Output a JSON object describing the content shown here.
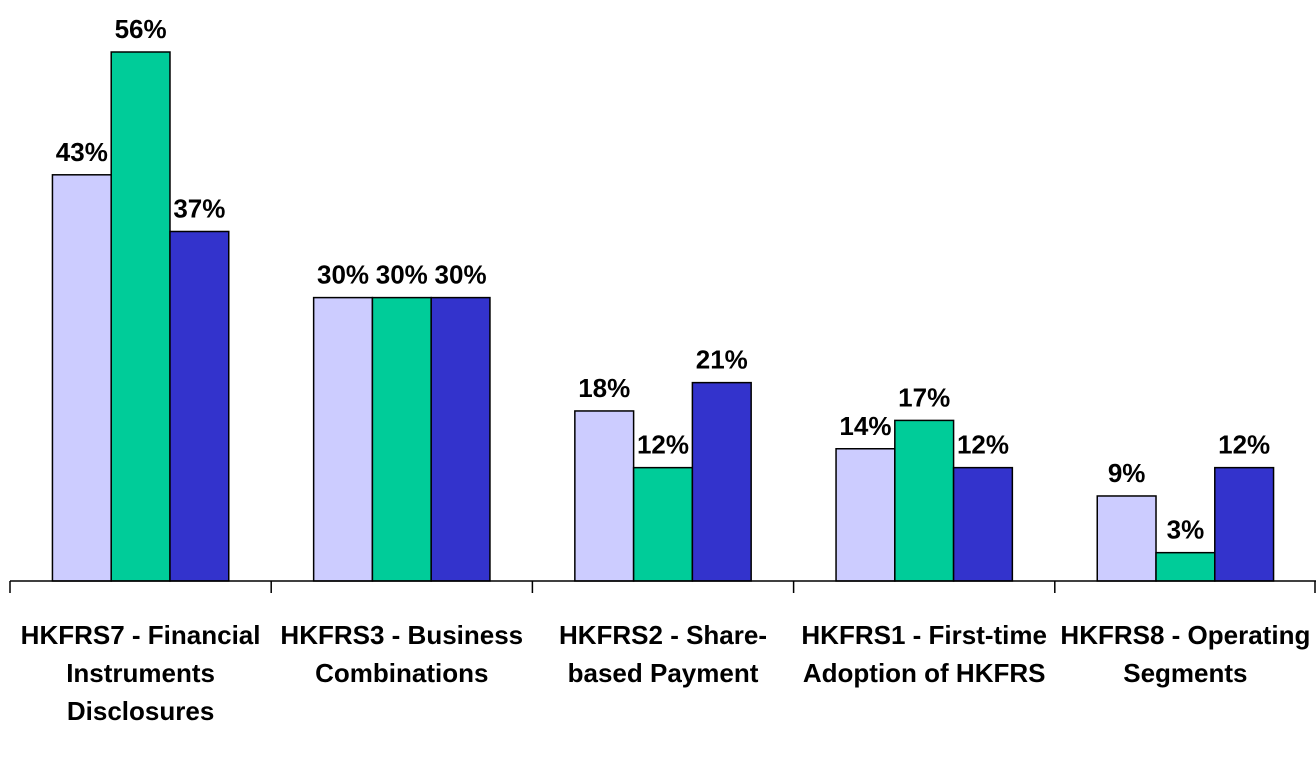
{
  "chart_data": {
    "type": "bar",
    "categories": [
      "HKFRS7 - Financial Instruments Disclosures",
      "HKFRS3 - Business Combinations",
      "HKFRS2 - Share-based Payment",
      "HKFRS1 - First-time Adoption of HKFRS",
      "HKFRS8 - Operating Segments"
    ],
    "series": [
      {
        "color": "#ccccff",
        "values": [
          43,
          30,
          18,
          14,
          9
        ],
        "value_labels": [
          "43%",
          "30%",
          "18%",
          "14%",
          "9%"
        ]
      },
      {
        "color": "#00cc99",
        "values": [
          56,
          30,
          12,
          17,
          3
        ],
        "value_labels": [
          "56%",
          "30%",
          "12%",
          "17%",
          "3%"
        ]
      },
      {
        "color": "#3333cc",
        "values": [
          37,
          30,
          21,
          12,
          12
        ],
        "value_labels": [
          "37%",
          "30%",
          "21%",
          "12%",
          "12%"
        ]
      }
    ]
  }
}
